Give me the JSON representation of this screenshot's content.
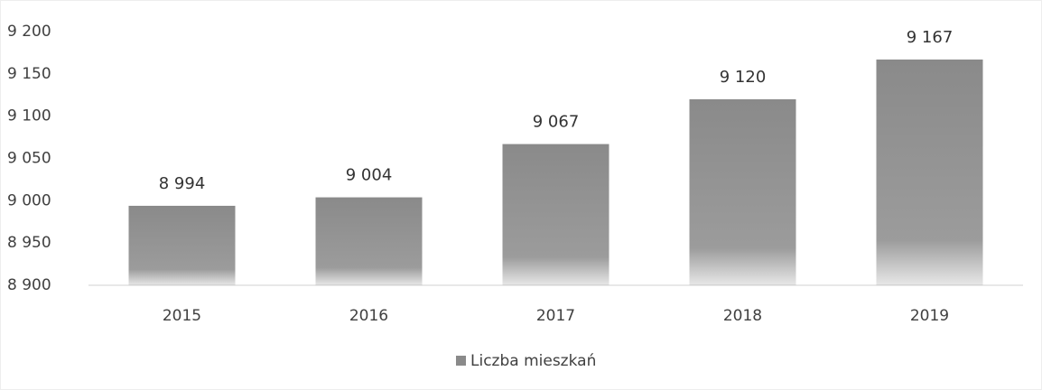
{
  "chart_data": {
    "type": "bar",
    "categories": [
      "2015",
      "2016",
      "2017",
      "2018",
      "2019"
    ],
    "series": [
      {
        "name": "Liczba mieszkań",
        "color": "#8a8a8a",
        "values": [
          8994,
          9004,
          9067,
          9120,
          9167
        ],
        "value_labels": [
          "8 994",
          "9 004",
          "9 067",
          "9 120",
          "9 167"
        ]
      }
    ],
    "ylim": [
      8900,
      9200
    ],
    "yticks": [
      {
        "value": 8900,
        "label": "8 900"
      },
      {
        "value": 8950,
        "label": "8 950"
      },
      {
        "value": 9000,
        "label": "9 000"
      },
      {
        "value": 9050,
        "label": "9 050"
      },
      {
        "value": 9100,
        "label": "9 100"
      },
      {
        "value": 9150,
        "label": "9 150"
      },
      {
        "value": 9200,
        "label": "9 200"
      }
    ],
    "grid": false,
    "legend": "bottom"
  }
}
